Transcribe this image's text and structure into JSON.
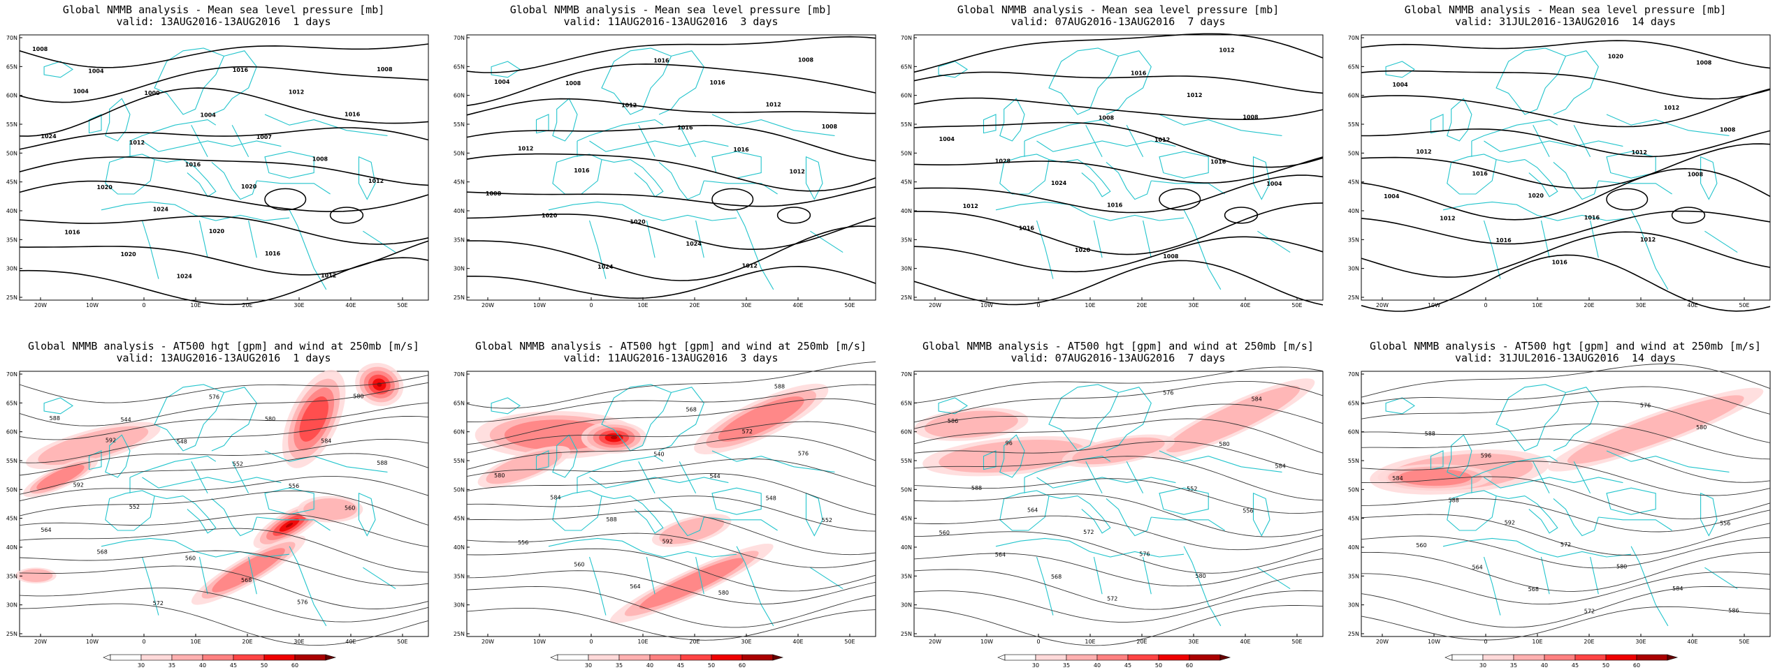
{
  "colors": {
    "coast": "#22c4cc",
    "contour_mslp": "#000000",
    "contour_hgt": "#333333",
    "wind_fill": [
      "#ffffff",
      "#ffd9d9",
      "#ffb0b0",
      "#ff8080",
      "#ff4444",
      "#ee0000",
      "#aa0000"
    ]
  },
  "axis": {
    "lat_ticks": [
      "70N",
      "65N",
      "60N",
      "55N",
      "50N",
      "45N",
      "40N",
      "35N",
      "30N",
      "25N"
    ],
    "lon_ticks": [
      "20W",
      "10W",
      "0",
      "10E",
      "20E",
      "30E",
      "40E",
      "50E"
    ]
  },
  "legend": {
    "ticks": [
      "30",
      "35",
      "40",
      "45",
      "50",
      "60"
    ]
  },
  "top_panels": [
    {
      "line1": "Global NMMB analysis - Mean sea level pressure [mb]",
      "line2": "valid: 13AUG2016-13AUG2016  1 days"
    },
    {
      "line1": "Global NMMB analysis - Mean sea level pressure [mb]",
      "line2": "valid: 11AUG2016-13AUG2016  3 days"
    },
    {
      "line1": "Global NMMB analysis - Mean sea level pressure [mb]",
      "line2": "valid: 07AUG2016-13AUG2016  7 days"
    },
    {
      "line1": "Global NMMB analysis - Mean sea level pressure [mb]",
      "line2": "valid: 31JUL2016-13AUG2016  14 days"
    }
  ],
  "bottom_panels": [
    {
      "line1": "Global NMMB analysis - AT500 hgt [gpm] and wind at 250mb [m/s]",
      "line2": "valid: 13AUG2016-13AUG2016  1 days"
    },
    {
      "line1": "Global NMMB analysis - AT500 hgt [gpm] and wind at 250mb [m/s]",
      "line2": "valid: 11AUG2016-13AUG2016  3 days"
    },
    {
      "line1": "Global NMMB analysis - AT500 hgt [gpm] and wind at 250mb [m/s]",
      "line2": "valid: 07AUG2016-13AUG2016  7 days"
    },
    {
      "line1": "Global NMMB analysis - AT500 hgt [gpm] and wind at 250mb [m/s]",
      "line2": "valid: 31JUL2016-13AUG2016  14 days"
    }
  ],
  "mslp_labels": [
    [
      "1008",
      "1004",
      "1000",
      "1004",
      "1007",
      "1008",
      "1012",
      "1016",
      "1020",
      "1024",
      "1016",
      "1012",
      "1016",
      "1024",
      "1020",
      "1024",
      "1020",
      "1016",
      "1012",
      "1008",
      "1004",
      "1012",
      "1016",
      "1020"
    ],
    [
      "1008",
      "1012",
      "1016",
      "1016",
      "1012",
      "1008",
      "1020",
      "1024",
      "1016",
      "1016",
      "1012",
      "1008",
      "1012",
      "1016",
      "1020",
      "1024",
      "1012",
      "1008",
      "1004"
    ],
    [
      "1008",
      "1012",
      "1016",
      "1004",
      "1012",
      "1016",
      "1020",
      "1016",
      "1012",
      "1008",
      "1004",
      "1028",
      "1024",
      "1016",
      "1008",
      "1012"
    ],
    [
      "1012",
      "1008",
      "1004",
      "1012",
      "1016",
      "1016",
      "1020",
      "1012",
      "1008",
      "1012",
      "1016",
      "1020",
      "1016",
      "1012",
      "1008",
      "1004"
    ]
  ],
  "hgt_labels": [
    [
      "544",
      "548",
      "552",
      "556",
      "560",
      "564",
      "568",
      "572",
      "576",
      "580",
      "584",
      "588",
      "592",
      "552",
      "560",
      "568",
      "576",
      "580",
      "588",
      "592"
    ],
    [
      "540",
      "544",
      "548",
      "552",
      "556",
      "560",
      "564",
      "568",
      "572",
      "576",
      "580",
      "584",
      "588",
      "592",
      "580",
      "588"
    ],
    [
      "552",
      "556",
      "560",
      "564",
      "568",
      "572",
      "576",
      "580",
      "584",
      "588",
      "564",
      "572",
      "576",
      "580",
      "584",
      "586",
      "96"
    ],
    [
      "556",
      "560",
      "564",
      "568",
      "572",
      "576",
      "580",
      "584",
      "588",
      "592",
      "572",
      "580",
      "584",
      "586",
      "588",
      "596"
    ]
  ]
}
